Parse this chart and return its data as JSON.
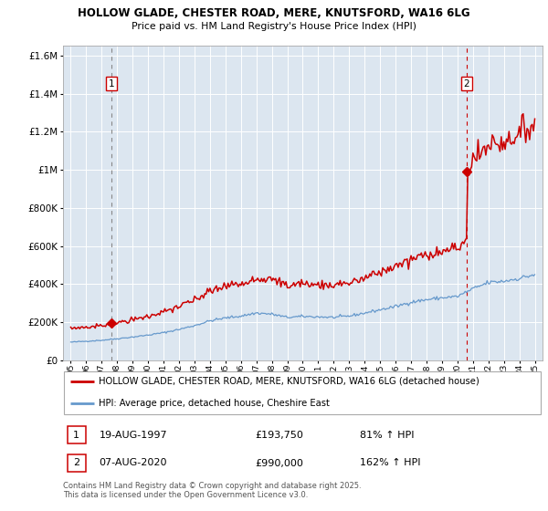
{
  "title1": "HOLLOW GLADE, CHESTER ROAD, MERE, KNUTSFORD, WA16 6LG",
  "title2": "Price paid vs. HM Land Registry's House Price Index (HPI)",
  "background_color": "#dce6f0",
  "transaction1_date": 1997.64,
  "transaction1_price": 193750,
  "transaction2_date": 2020.6,
  "transaction2_price": 990000,
  "legend_line1": "HOLLOW GLADE, CHESTER ROAD, MERE, KNUTSFORD, WA16 6LG (detached house)",
  "legend_line2": "HPI: Average price, detached house, Cheshire East",
  "annotation1_label": "19-AUG-1997",
  "annotation1_price": "£193,750",
  "annotation1_hpi": "81% ↑ HPI",
  "annotation2_label": "07-AUG-2020",
  "annotation2_price": "£990,000",
  "annotation2_hpi": "162% ↑ HPI",
  "footer": "Contains HM Land Registry data © Crown copyright and database right 2025.\nThis data is licensed under the Open Government Licence v3.0.",
  "red_color": "#cc0000",
  "blue_color": "#6699cc",
  "ylim": [
    0,
    1650000
  ],
  "xlim": [
    1994.5,
    2025.5
  ]
}
